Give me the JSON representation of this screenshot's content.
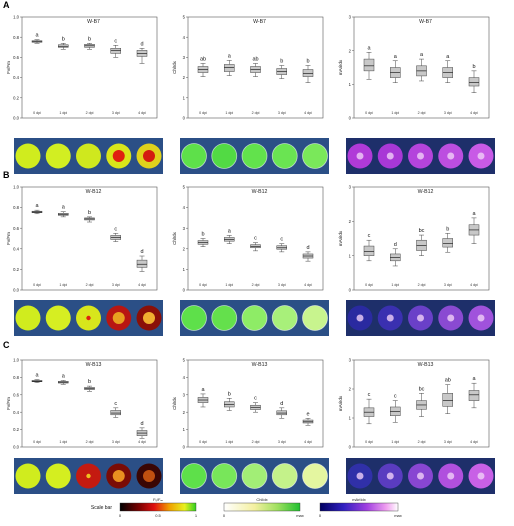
{
  "panel_letters": [
    "A",
    "B",
    "C"
  ],
  "colorbars": {
    "label": "Scale bar",
    "fvfm": {
      "title": "Fᵥ/Fₘ",
      "ticks": [
        "0",
        "0.5",
        "1"
      ]
    },
    "chlidx": {
      "title": "ChlIdx",
      "ticks": [
        "0",
        "max"
      ]
    },
    "ariidx": {
      "title": "mAriIdx",
      "ticks": [
        "0",
        "max"
      ]
    }
  },
  "image_strips": [
    {
      "row": "A",
      "panels": [
        {
          "kind": "fvfm",
          "spots": [
            "#d0ec1e",
            "#d2ee22",
            "#cfe81e",
            "#d9e51a",
            "#dfd11c"
          ],
          "centers": [
            null,
            null,
            null,
            "#e02010",
            "#d41a10"
          ]
        },
        {
          "kind": "chlidx",
          "spots": [
            "#5ee04a",
            "#52da44",
            "#62e24c",
            "#6ae452",
            "#7ae85a"
          ]
        },
        {
          "kind": "ariidx",
          "spots": [
            "#b03ad8",
            "#a838d6",
            "#b444dc",
            "#bc4ee0",
            "#c85ae6"
          ]
        }
      ]
    },
    {
      "row": "B",
      "panels": [
        {
          "kind": "fvfm",
          "spots": [
            "#d0ec1e",
            "#d6ee22",
            "#d8e61c",
            "#b81612",
            "#8a1008"
          ],
          "centers": [
            null,
            null,
            "#e02010",
            "#e8a020",
            "#f0b030"
          ]
        },
        {
          "kind": "chlidx",
          "spots": [
            "#5ee04a",
            "#64e04c",
            "#8eec66",
            "#a8f07a",
            "#c8f48e"
          ]
        },
        {
          "kind": "ariidx",
          "spots": [
            "#2a2aa0",
            "#3a30b0",
            "#6a40c8",
            "#8a4ad2",
            "#a052dc"
          ]
        }
      ]
    },
    {
      "row": "C",
      "panels": [
        {
          "kind": "fvfm",
          "spots": [
            "#d0ec1e",
            "#d4ee20",
            "#c41a10",
            "#7a0c06",
            "#3a0604"
          ],
          "centers": [
            null,
            null,
            "#f0c020",
            "#e89020",
            "#c05010"
          ]
        },
        {
          "kind": "chlidx",
          "spots": [
            "#5ee04a",
            "#78e65a",
            "#a2ee76",
            "#c4f28a",
            "#e4f6a0"
          ]
        },
        {
          "kind": "ariidx",
          "spots": [
            "#3030a8",
            "#5a3cc0",
            "#8846d2",
            "#b050de",
            "#c860e6"
          ]
        }
      ]
    }
  ],
  "chart_data": [
    {
      "type": "box",
      "title": "W-B7",
      "ylabel": "Fv/Fm",
      "categories": [
        "0 dpi",
        "1 dpi",
        "2 dpi",
        "3 dpi",
        "4 dpi"
      ],
      "ylim": [
        0,
        1
      ],
      "yticks": [
        0,
        0.2,
        0.4,
        0.6,
        0.8,
        1.0
      ],
      "ytick_labels": [
        "0.0",
        "0.2",
        "0.4",
        "0.6",
        "0.8",
        "1.0"
      ],
      "boxes": [
        {
          "whislo": 0.74,
          "q1": 0.75,
          "med": 0.757,
          "q3": 0.765,
          "whishi": 0.775,
          "letter": "a"
        },
        {
          "whislo": 0.68,
          "q1": 0.7,
          "med": 0.71,
          "q3": 0.725,
          "whishi": 0.74,
          "letter": "b"
        },
        {
          "whislo": 0.68,
          "q1": 0.7,
          "med": 0.715,
          "q3": 0.73,
          "whishi": 0.74,
          "letter": "b"
        },
        {
          "whislo": 0.6,
          "q1": 0.64,
          "med": 0.67,
          "q3": 0.69,
          "whishi": 0.72,
          "letter": "c"
        },
        {
          "whislo": 0.54,
          "q1": 0.61,
          "med": 0.64,
          "q3": 0.67,
          "whishi": 0.69,
          "letter": "d"
        }
      ]
    },
    {
      "type": "box",
      "title": "W-B7",
      "ylabel": "ChlIdx",
      "categories": [
        "0 dpi",
        "1 dpi",
        "2 dpi",
        "3 dpi",
        "4 dpi"
      ],
      "ylim": [
        0,
        5
      ],
      "yticks": [
        0,
        1,
        2,
        3,
        4,
        5
      ],
      "ytick_labels": [
        "0",
        "1",
        "2",
        "3",
        "4",
        "5"
      ],
      "boxes": [
        {
          "whislo": 2.05,
          "q1": 2.25,
          "med": 2.4,
          "q3": 2.55,
          "whishi": 2.7,
          "letter": "ab"
        },
        {
          "whislo": 2.1,
          "q1": 2.3,
          "med": 2.5,
          "q3": 2.65,
          "whishi": 2.85,
          "letter": "a"
        },
        {
          "whislo": 2.05,
          "q1": 2.25,
          "med": 2.4,
          "q3": 2.55,
          "whishi": 2.7,
          "letter": "ab"
        },
        {
          "whislo": 1.95,
          "q1": 2.15,
          "med": 2.3,
          "q3": 2.45,
          "whishi": 2.6,
          "letter": "b"
        },
        {
          "whislo": 1.75,
          "q1": 2.05,
          "med": 2.2,
          "q3": 2.4,
          "whishi": 2.6,
          "letter": "b"
        }
      ]
    },
    {
      "type": "box",
      "title": "W-B7",
      "ylabel": "mAriIdx",
      "categories": [
        "0 dpi",
        "1 dpi",
        "2 dpi",
        "3 dpi",
        "4 dpi"
      ],
      "ylim": [
        0,
        3
      ],
      "yticks": [
        0,
        1,
        2,
        3
      ],
      "ytick_labels": [
        "0",
        "1",
        "2",
        "3"
      ],
      "boxes": [
        {
          "whislo": 1.15,
          "q1": 1.4,
          "med": 1.55,
          "q3": 1.75,
          "whishi": 1.95,
          "letter": "a"
        },
        {
          "whislo": 1.05,
          "q1": 1.2,
          "med": 1.35,
          "q3": 1.5,
          "whishi": 1.7,
          "letter": "a"
        },
        {
          "whislo": 1.1,
          "q1": 1.25,
          "med": 1.4,
          "q3": 1.55,
          "whishi": 1.75,
          "letter": "a"
        },
        {
          "whislo": 1.05,
          "q1": 1.2,
          "med": 1.35,
          "q3": 1.5,
          "whishi": 1.7,
          "letter": "a"
        },
        {
          "whislo": 0.75,
          "q1": 0.95,
          "med": 1.05,
          "q3": 1.2,
          "whishi": 1.4,
          "letter": "b"
        }
      ]
    },
    {
      "type": "box",
      "title": "W-B12",
      "ylabel": "Fv/Fm",
      "categories": [
        "0 dpi",
        "1 dpi",
        "2 dpi",
        "3 dpi",
        "4 dpi"
      ],
      "ylim": [
        0,
        1
      ],
      "yticks": [
        0,
        0.2,
        0.4,
        0.6,
        0.8,
        1.0
      ],
      "ytick_labels": [
        "0.0",
        "0.2",
        "0.4",
        "0.6",
        "0.8",
        "1.0"
      ],
      "boxes": [
        {
          "whislo": 0.74,
          "q1": 0.75,
          "med": 0.757,
          "q3": 0.765,
          "whishi": 0.775,
          "letter": "a"
        },
        {
          "whislo": 0.71,
          "q1": 0.725,
          "med": 0.735,
          "q3": 0.745,
          "whishi": 0.76,
          "letter": "a"
        },
        {
          "whislo": 0.66,
          "q1": 0.68,
          "med": 0.69,
          "q3": 0.7,
          "whishi": 0.71,
          "letter": "b"
        },
        {
          "whislo": 0.47,
          "q1": 0.49,
          "med": 0.51,
          "q3": 0.53,
          "whishi": 0.55,
          "letter": "c"
        },
        {
          "whislo": 0.18,
          "q1": 0.22,
          "med": 0.25,
          "q3": 0.29,
          "whishi": 0.33,
          "letter": "d"
        }
      ]
    },
    {
      "type": "box",
      "title": "W-B12",
      "ylabel": "ChlIdx",
      "categories": [
        "0 dpi",
        "1 dpi",
        "2 dpi",
        "3 dpi",
        "4 dpi"
      ],
      "ylim": [
        0,
        5
      ],
      "yticks": [
        0,
        1,
        2,
        3,
        4,
        5
      ],
      "ytick_labels": [
        "0",
        "1",
        "2",
        "3",
        "4",
        "5"
      ],
      "boxes": [
        {
          "whislo": 2.1,
          "q1": 2.22,
          "med": 2.3,
          "q3": 2.4,
          "whishi": 2.5,
          "letter": "b"
        },
        {
          "whislo": 2.25,
          "q1": 2.37,
          "med": 2.45,
          "q3": 2.55,
          "whishi": 2.65,
          "letter": "a"
        },
        {
          "whislo": 1.9,
          "q1": 2.05,
          "med": 2.12,
          "q3": 2.2,
          "whishi": 2.3,
          "letter": "c"
        },
        {
          "whislo": 1.85,
          "q1": 1.98,
          "med": 2.05,
          "q3": 2.15,
          "whishi": 2.25,
          "letter": "c"
        },
        {
          "whislo": 1.4,
          "q1": 1.55,
          "med": 1.65,
          "q3": 1.75,
          "whishi": 1.85,
          "letter": "d"
        }
      ]
    },
    {
      "type": "box",
      "title": "W-B12",
      "ylabel": "mAriIdx",
      "categories": [
        "0 dpi",
        "1 dpi",
        "2 dpi",
        "3 dpi",
        "4 dpi"
      ],
      "ylim": [
        0,
        3
      ],
      "yticks": [
        0,
        1,
        2,
        3
      ],
      "ytick_labels": [
        "0",
        "1",
        "2",
        "3"
      ],
      "boxes": [
        {
          "whislo": 0.85,
          "q1": 1.0,
          "med": 1.12,
          "q3": 1.28,
          "whishi": 1.45,
          "letter": "c"
        },
        {
          "whislo": 0.7,
          "q1": 0.85,
          "med": 0.95,
          "q3": 1.05,
          "whishi": 1.2,
          "letter": "d"
        },
        {
          "whislo": 1.0,
          "q1": 1.15,
          "med": 1.3,
          "q3": 1.45,
          "whishi": 1.6,
          "letter": "bc"
        },
        {
          "whislo": 1.1,
          "q1": 1.25,
          "med": 1.35,
          "q3": 1.5,
          "whishi": 1.65,
          "letter": "b"
        },
        {
          "whislo": 1.35,
          "q1": 1.6,
          "med": 1.75,
          "q3": 1.9,
          "whishi": 2.1,
          "letter": "a"
        }
      ]
    },
    {
      "type": "box",
      "title": "W-B13",
      "ylabel": "Fv/Fm",
      "categories": [
        "0 dpi",
        "1 dpi",
        "2 dpi",
        "3 dpi",
        "4 dpi"
      ],
      "ylim": [
        0,
        1
      ],
      "yticks": [
        0,
        0.2,
        0.4,
        0.6,
        0.8,
        1.0
      ],
      "ytick_labels": [
        "0.0",
        "0.2",
        "0.4",
        "0.6",
        "0.8",
        "1.0"
      ],
      "boxes": [
        {
          "whislo": 0.74,
          "q1": 0.75,
          "med": 0.757,
          "q3": 0.765,
          "whishi": 0.775,
          "letter": "a"
        },
        {
          "whislo": 0.72,
          "q1": 0.735,
          "med": 0.745,
          "q3": 0.755,
          "whishi": 0.765,
          "letter": "a"
        },
        {
          "whislo": 0.64,
          "q1": 0.66,
          "med": 0.67,
          "q3": 0.685,
          "whishi": 0.7,
          "letter": "b"
        },
        {
          "whislo": 0.34,
          "q1": 0.37,
          "med": 0.39,
          "q3": 0.42,
          "whishi": 0.45,
          "letter": "c"
        },
        {
          "whislo": 0.1,
          "q1": 0.13,
          "med": 0.16,
          "q3": 0.19,
          "whishi": 0.22,
          "letter": "d"
        }
      ]
    },
    {
      "type": "box",
      "title": "W-B13",
      "ylabel": "ChlIdx",
      "categories": [
        "0 dpi",
        "1 dpi",
        "2 dpi",
        "3 dpi",
        "4 dpi"
      ],
      "ylim": [
        0,
        5
      ],
      "yticks": [
        0,
        1,
        2,
        3,
        4,
        5
      ],
      "ytick_labels": [
        "0",
        "1",
        "2",
        "3",
        "4",
        "5"
      ],
      "boxes": [
        {
          "whislo": 2.3,
          "q1": 2.55,
          "med": 2.7,
          "q3": 2.85,
          "whishi": 3.05,
          "letter": "a"
        },
        {
          "whislo": 2.1,
          "q1": 2.3,
          "med": 2.45,
          "q3": 2.6,
          "whishi": 2.8,
          "letter": "b"
        },
        {
          "whislo": 2.0,
          "q1": 2.15,
          "med": 2.28,
          "q3": 2.4,
          "whishi": 2.55,
          "letter": "c"
        },
        {
          "whislo": 1.65,
          "q1": 1.85,
          "med": 1.95,
          "q3": 2.08,
          "whishi": 2.25,
          "letter": "d"
        },
        {
          "whislo": 1.25,
          "q1": 1.38,
          "med": 1.45,
          "q3": 1.55,
          "whishi": 1.65,
          "letter": "e"
        }
      ]
    },
    {
      "type": "box",
      "title": "W-B13",
      "ylabel": "mAriIdx",
      "categories": [
        "0 dpi",
        "1 dpi",
        "2 dpi",
        "3 dpi",
        "4 dpi"
      ],
      "ylim": [
        0,
        3
      ],
      "yticks": [
        0,
        1,
        2,
        3
      ],
      "ytick_labels": [
        "0",
        "1",
        "2",
        "3"
      ],
      "boxes": [
        {
          "whislo": 0.8,
          "q1": 1.05,
          "med": 1.2,
          "q3": 1.35,
          "whishi": 1.65,
          "letter": "c"
        },
        {
          "whislo": 0.85,
          "q1": 1.08,
          "med": 1.22,
          "q3": 1.38,
          "whishi": 1.6,
          "letter": "c"
        },
        {
          "whislo": 1.05,
          "q1": 1.3,
          "med": 1.45,
          "q3": 1.6,
          "whishi": 1.85,
          "letter": "bc"
        },
        {
          "whislo": 1.15,
          "q1": 1.4,
          "med": 1.6,
          "q3": 1.85,
          "whishi": 2.15,
          "letter": "ab"
        },
        {
          "whislo": 1.35,
          "q1": 1.6,
          "med": 1.8,
          "q3": 1.95,
          "whishi": 2.2,
          "letter": "a"
        }
      ]
    }
  ]
}
